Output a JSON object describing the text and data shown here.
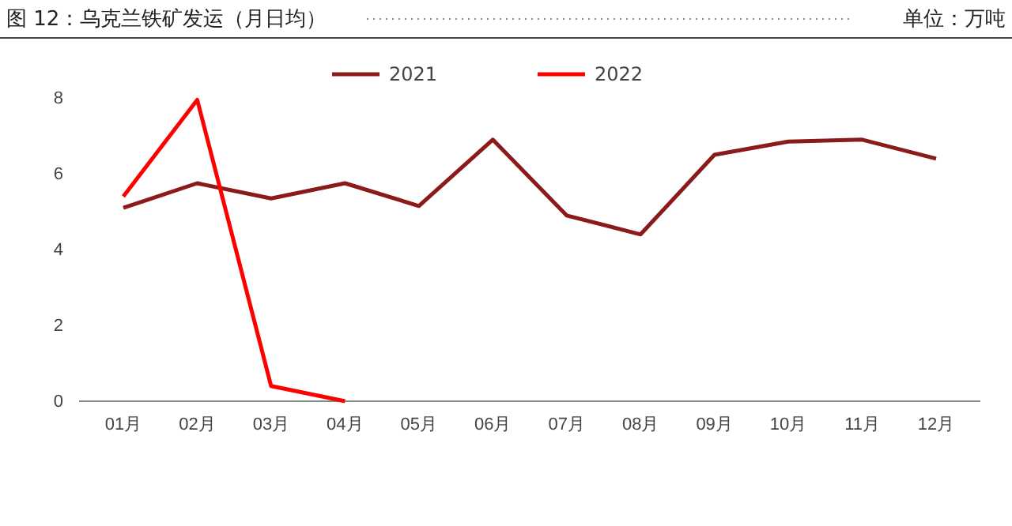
{
  "chart_data": {
    "type": "line",
    "title": "图 12：乌克兰铁矿发运（月日均）",
    "subtitle": "单位：万吨",
    "categories": [
      "01月",
      "02月",
      "03月",
      "04月",
      "05月",
      "06月",
      "07月",
      "08月",
      "09月",
      "10月",
      "11月",
      "12月"
    ],
    "series": [
      {
        "name": "2021",
        "color": "#8b1a1a",
        "values": [
          5.1,
          5.75,
          5.35,
          5.75,
          5.15,
          6.9,
          4.9,
          4.4,
          6.5,
          6.85,
          6.9,
          6.4
        ]
      },
      {
        "name": "2022",
        "color": "#ff0000",
        "values": [
          5.4,
          7.95,
          0.4,
          0.0,
          null,
          null,
          null,
          null,
          null,
          null,
          null,
          null
        ]
      }
    ],
    "ylim": [
      0,
      8
    ],
    "yticks": [
      0,
      2,
      4,
      6,
      8
    ],
    "grid": false,
    "legend": "top",
    "marker": "none",
    "line_style": "solid"
  }
}
